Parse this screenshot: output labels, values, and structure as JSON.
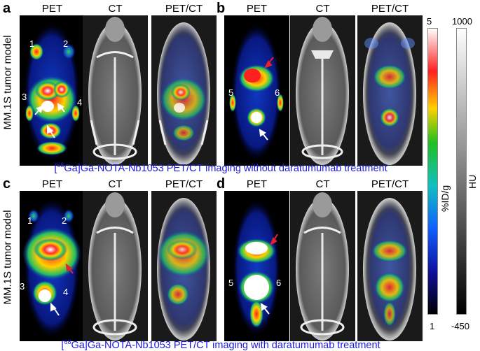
{
  "panels": [
    {
      "letter": "a",
      "col_heads": [
        "PET",
        "CT",
        "PET/CT"
      ],
      "numbers": [
        "1",
        "2",
        "3",
        "4"
      ]
    },
    {
      "letter": "b",
      "col_heads": [
        "PET",
        "CT",
        "PET/CT"
      ],
      "numbers": [
        "5",
        "6"
      ]
    },
    {
      "letter": "c",
      "col_heads": [
        "PET",
        "CT",
        "PET/CT"
      ],
      "numbers": [
        "1",
        "2",
        "3",
        "4"
      ]
    },
    {
      "letter": "d",
      "col_heads": [
        "PET",
        "CT",
        "PET/CT"
      ],
      "numbers": [
        "5",
        "6"
      ]
    }
  ],
  "row_labels": [
    "MM.1S tumor model",
    "MM.1S tumor model"
  ],
  "captions": {
    "top": {
      "sup": "68",
      "text": "Ga]Ga-NOTA-Nb1053 PET/CT imaging without daratumumab treatment"
    },
    "bottom": {
      "sup": "68",
      "text": "Ga]Ga-NOTA-Nb1053 PET/CT imaging with daratumumab treatment"
    }
  },
  "colorbars": {
    "pet": {
      "max": "5",
      "min": "1",
      "unit": "%ID/g"
    },
    "ct": {
      "max": "1000",
      "min": "-450",
      "unit": "HU"
    }
  },
  "colors": {
    "caption": "#1a1adf",
    "arrow_white": "#ffffff",
    "arrow_red": "#e8202a"
  }
}
